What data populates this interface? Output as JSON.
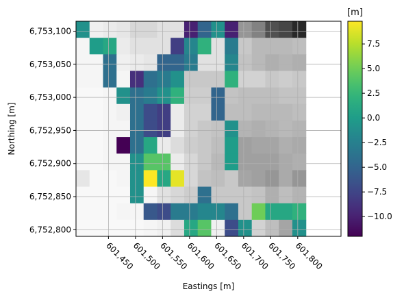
{
  "chart_data": {
    "type": "heatmap",
    "xlabel": "Eastings [m]",
    "ylabel": "Northing [m]",
    "colorbar_title": "[m]",
    "colormap": "viridis",
    "grid": true,
    "xlim": [
      601390,
      601880
    ],
    "ylim": [
      6752790,
      6753115
    ],
    "x_ticks": [
      601450,
      601500,
      601550,
      601600,
      601650,
      601700,
      601750,
      601800
    ],
    "x_tick_labels": [
      "601,450",
      "601,500",
      "601,550",
      "601,600",
      "601,650",
      "601,700",
      "601,750",
      "601,800"
    ],
    "y_ticks": [
      6752800,
      6752850,
      6752900,
      6752950,
      6753000,
      6753050,
      6753100
    ],
    "y_tick_labels": [
      "6,752,800",
      "6,752,850",
      "6,752,900",
      "6,752,950",
      "6,753,000",
      "6,753,050",
      "6,753,100"
    ],
    "colorbar_range": [
      -12,
      9.8
    ],
    "colorbar_ticks": [
      7.5,
      5.0,
      2.5,
      0.0,
      -2.5,
      -5.0,
      -7.5,
      -10.0
    ],
    "colorbar_tick_labels": [
      "7.5",
      "5.0",
      "2.5",
      "0.0",
      "−2.5",
      "−5.0",
      "−7.5",
      "−10.0"
    ],
    "cell_size": 25,
    "grid_origin": [
      601390,
      6753115
    ],
    "rows": [
      [
        "-1",
        "B240",
        "B235",
        "B230",
        "B215",
        "B215",
        "B225",
        "B225",
        "-10",
        "-5",
        "-1",
        "-10",
        "B150",
        "B130",
        "B80",
        "B70",
        "B40"
      ],
      [
        "B245",
        "0",
        "1",
        "B235",
        "B225",
        "B225",
        "B225",
        "-8",
        "-2",
        "2",
        "B225",
        "-3",
        "B200",
        "B185",
        "B185",
        "B185",
        "B190"
      ],
      [
        "B245",
        "B245",
        "-4",
        "B240",
        "B235",
        "B230",
        "-5",
        "-5",
        "-3",
        "B225",
        "B225",
        "-2",
        "B195",
        "B185",
        "B175",
        "B180",
        "B175"
      ],
      [
        "B245",
        "B245",
        "-4",
        "B245",
        "-9",
        "-4",
        "-3",
        "-1",
        "B200",
        "B200",
        "B200",
        "2",
        "B210",
        "B210",
        "B200",
        "B205",
        "B200"
      ],
      [
        "B248",
        "B248",
        "B245",
        "-1",
        "-4",
        "-3",
        "-1",
        "2",
        "B205",
        "B205",
        "-5",
        "B195",
        "B190",
        "B190",
        "B190",
        "B195",
        "B195"
      ],
      [
        "B248",
        "B248",
        "B245",
        "B240",
        "-4",
        "-7",
        "-8",
        "B235",
        "B210",
        "B210",
        "-5",
        "B190",
        "B190",
        "B185",
        "B185",
        "B185",
        "B190"
      ],
      [
        "B248",
        "B248",
        "B245",
        "B245",
        "-4",
        "-7",
        "-8",
        "B235",
        "B210",
        "B200",
        "B195",
        "-1",
        "B180",
        "B175",
        "B180",
        "B185",
        "B180"
      ],
      [
        "B248",
        "B248",
        "B245",
        "-12",
        "-4",
        "1",
        "B235",
        "B220",
        "B205",
        "B200",
        "B190",
        "0",
        "B160",
        "B165",
        "B165",
        "B175",
        "B170"
      ],
      [
        "B248",
        "B248",
        "B245",
        "B245",
        "-1",
        "4",
        "4",
        "B235",
        "B215",
        "B200",
        "B185",
        "0",
        "B160",
        "B160",
        "B160",
        "B170",
        "B175"
      ],
      [
        "B230",
        "B248",
        "B248",
        "B245",
        "-1",
        "10",
        "1",
        "9",
        "B215",
        "B195",
        "B190",
        "B200",
        "B165",
        "B160",
        "B150",
        "B170",
        "B150"
      ],
      [
        "B248",
        "B248",
        "B248",
        "B248",
        "-1",
        "B245",
        "B225",
        "B215",
        "B205",
        "-4",
        "B200",
        "B200",
        "B200",
        "B195",
        "B175",
        "B190",
        "B180"
      ],
      [
        "B248",
        "B248",
        "B248",
        "B245",
        "B245",
        "-6",
        "-7",
        "-3",
        "-3",
        "-2",
        "-2",
        "-4",
        "B200",
        "5",
        "1",
        "1",
        "2"
      ],
      [
        "B248",
        "B248",
        "B248",
        "B248",
        "B248",
        "B245",
        "B240",
        "B220",
        "1",
        "4",
        "B240",
        "-7",
        "-1",
        "B210",
        "B190",
        "B165",
        "-1"
      ],
      [
        "B248",
        "B248",
        "B248",
        "B248",
        "B248",
        "B240",
        "B240",
        "B220",
        "-5",
        "B215",
        "B220",
        "B210",
        "-6",
        "-3",
        "B210",
        "B180",
        "B210"
      ],
      [
        "B245",
        "B245",
        "B245",
        "B245",
        "B245",
        "B245",
        "B240",
        "B225",
        "-1",
        "B215",
        "B215",
        "B205",
        "B200",
        "-3",
        "B200",
        "B200",
        "B210"
      ],
      [
        "B245",
        "B245",
        "B245",
        "B245",
        "B245",
        "B240",
        "B240",
        "B225",
        "-7",
        "-1",
        "B215",
        "B205",
        "B200",
        "-3",
        "B200",
        "B200",
        "B210"
      ]
    ]
  }
}
